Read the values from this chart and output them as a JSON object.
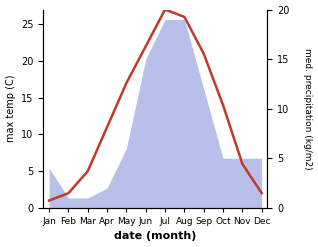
{
  "months": [
    "Jan",
    "Feb",
    "Mar",
    "Apr",
    "May",
    "Jun",
    "Jul",
    "Aug",
    "Sep",
    "Oct",
    "Nov",
    "Dec"
  ],
  "temp_max": [
    1,
    2,
    5,
    11,
    17,
    22,
    27,
    26,
    21,
    14,
    6,
    2
  ],
  "precipitation": [
    4,
    1,
    1,
    2,
    6,
    15,
    19,
    19,
    12,
    5,
    5,
    5
  ],
  "temp_ylim": [
    0,
    27
  ],
  "precip_ylim": [
    0,
    20
  ],
  "temp_yticks": [
    0,
    5,
    10,
    15,
    20,
    25
  ],
  "precip_yticks": [
    0,
    5,
    10,
    15,
    20
  ],
  "fill_color": "#b0b8e8",
  "line_color": "#c0392b",
  "line_width": 1.8,
  "ylabel_left": "max temp (C)",
  "ylabel_right": "med. precipitation (kg/m2)",
  "xlabel": "date (month)",
  "background_color": "#ffffff"
}
